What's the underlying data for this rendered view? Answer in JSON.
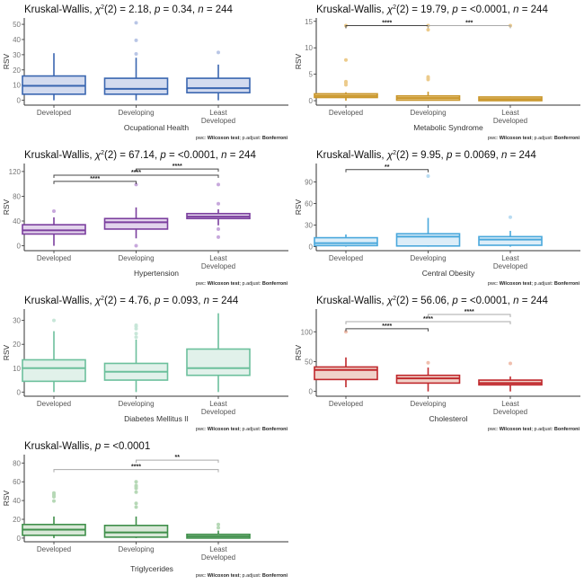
{
  "chart_data": [
    {
      "type": "box",
      "title": {
        "prefix": "Kruskal-Wallis, ",
        "chi": "χ",
        "sup": "2",
        "rest": "(2) = 2.18, ",
        "p_label": "p",
        "p_val": " = 0.34, ",
        "n_label": "n",
        "n_val": " = 244"
      },
      "xlabel": "Ocupational Health",
      "ylabel": "RSV",
      "categories": [
        "Developed",
        "Developing",
        "Least\nDeveloped"
      ],
      "ylim": [
        -2,
        53
      ],
      "yticks": [
        0,
        10,
        20,
        30,
        40,
        50
      ],
      "color": {
        "stroke": "#3a66b0",
        "fill": "#d3dbef",
        "outlier": "#b9c6e6"
      },
      "boxes": [
        {
          "min": 0,
          "q1": 4,
          "median": 9.5,
          "q3": 16,
          "max": 31,
          "outliers": []
        },
        {
          "min": 0,
          "q1": 4,
          "median": 7.5,
          "q3": 14.5,
          "max": 28,
          "outliers": [
            30.5,
            39.5,
            51
          ]
        },
        {
          "min": 0,
          "q1": 5,
          "median": 8,
          "q3": 14.5,
          "max": 23.5,
          "outliers": [
            31.5
          ]
        }
      ],
      "comparisons": [],
      "footer": {
        "pwc": "pwc: ",
        "test": "Wilcoxon test",
        "sep": "; p.adjust: ",
        "adj": "Bonferroni"
      }
    },
    {
      "type": "box",
      "title": {
        "prefix": "Kruskal-Wallis, ",
        "chi": "χ",
        "sup": "2",
        "rest": "(2) = 19.79, ",
        "p_label": "p",
        "p_val": " = <0.0001, ",
        "n_label": "n",
        "n_val": " = 244"
      },
      "xlabel": "Metabolic Syndrome",
      "ylabel": "RSV",
      "categories": [
        "Developed",
        "Developing",
        "Least\nDeveloped"
      ],
      "ylim": [
        -0.5,
        15.3
      ],
      "yticks": [
        0,
        5,
        10,
        15
      ],
      "color": {
        "stroke": "#c9962a",
        "fill": "#efd9a8",
        "outlier": "#eccb8c"
      },
      "boxes": [
        {
          "min": 0,
          "q1": 0.6,
          "median": 0.9,
          "q3": 1.3,
          "max": 1.6,
          "outliers": [
            3.0,
            3.4,
            3.6,
            7.7,
            14.2
          ]
        },
        {
          "min": 0,
          "q1": 0.1,
          "median": 0.5,
          "q3": 0.9,
          "max": 1.7,
          "outliers": [
            4.0,
            4.3,
            4.5,
            13.4,
            14.2
          ]
        },
        {
          "min": 0,
          "q1": 0.0,
          "median": 0.3,
          "q3": 0.7,
          "max": 0.8,
          "outliers": [
            14.2
          ]
        }
      ],
      "comparisons": [
        {
          "from": 0,
          "to": 1,
          "label": "****",
          "y": 14.2,
          "style": "dark"
        },
        {
          "from": 1,
          "to": 2,
          "label": "***",
          "y": 14.2,
          "style": "light"
        }
      ],
      "footer": {
        "pwc": "pwc: ",
        "test": "Wilcoxon test",
        "sep": "; p.adjust: ",
        "adj": "Bonferroni"
      }
    },
    {
      "type": "box",
      "title": {
        "prefix": "Kruskal-Wallis, ",
        "chi": "χ",
        "sup": "2",
        "rest": "(2) = 67.14, ",
        "p_label": "p",
        "p_val": " = <0.0001, ",
        "n_label": "n",
        "n_val": " = 244"
      },
      "xlabel": "Hypertension",
      "ylabel": "RSV",
      "categories": [
        "Developed",
        "Developing",
        "Least\nDeveloped"
      ],
      "ylim": [
        -5,
        130
      ],
      "yticks": [
        0,
        40,
        80,
        120
      ],
      "color": {
        "stroke": "#7b3f9e",
        "fill": "#e2d4ec",
        "outlier": "#c7a8dc"
      },
      "boxes": [
        {
          "min": 0,
          "q1": 19,
          "median": 25,
          "q3": 34,
          "max": 46,
          "outliers": [
            56
          ]
        },
        {
          "min": 12,
          "q1": 27,
          "median": 38,
          "q3": 44,
          "max": 62,
          "outliers": [
            0,
            99
          ]
        },
        {
          "min": 33,
          "q1": 44,
          "median": 47,
          "q3": 52,
          "max": 59,
          "outliers": [
            14,
            27,
            68,
            99
          ]
        }
      ],
      "comparisons": [
        {
          "from": 0,
          "to": 1,
          "label": "****",
          "y": 104,
          "style": "dark"
        },
        {
          "from": 0,
          "to": 2,
          "label": "****",
          "y": 114,
          "style": "dark"
        },
        {
          "from": 1,
          "to": 2,
          "label": "****",
          "y": 124,
          "style": "dark"
        }
      ],
      "footer": {
        "pwc": "pwc: ",
        "test": "Wilcoxon test",
        "sep": "; p.adjust: ",
        "adj": "Bonferroni"
      }
    },
    {
      "type": "box",
      "title": {
        "prefix": "Kruskal-Wallis, ",
        "chi": "χ",
        "sup": "2",
        "rest": "(2) = 9.95, ",
        "p_label": "p",
        "p_val": " = 0.0069, ",
        "n_label": "n",
        "n_val": " = 244"
      },
      "xlabel": "Central Obesity",
      "ylabel": "RSV",
      "categories": [
        "Developed",
        "Developing",
        "Least\nDeveloped"
      ],
      "ylim": [
        -3,
        113
      ],
      "yticks": [
        0,
        30,
        60,
        90
      ],
      "color": {
        "stroke": "#4aa8dc",
        "fill": "#dcedf8",
        "outlier": "#b9dcf2"
      },
      "boxes": [
        {
          "min": 0,
          "q1": 1.5,
          "median": 5,
          "q3": 12.5,
          "max": 17,
          "outliers": []
        },
        {
          "min": 0,
          "q1": 1,
          "median": 14,
          "q3": 18,
          "max": 40,
          "outliers": [
            98
          ]
        },
        {
          "min": 0,
          "q1": 2,
          "median": 10,
          "q3": 14,
          "max": 22,
          "outliers": [
            41
          ]
        }
      ],
      "comparisons": [
        {
          "from": 0,
          "to": 1,
          "label": "**",
          "y": 107,
          "style": "dark"
        }
      ],
      "footer": {
        "pwc": "pwc: ",
        "test": "Wilcoxon test",
        "sep": "; p.adjust: ",
        "adj": "Bonferroni"
      }
    },
    {
      "type": "box",
      "title": {
        "prefix": "Kruskal-Wallis, ",
        "chi": "χ",
        "sup": "2",
        "rest": "(2) = 4.76, ",
        "p_label": "p",
        "p_val": " = 0.093, ",
        "n_label": "n",
        "n_val": " = 244"
      },
      "xlabel": "Diabetes Mellitus II",
      "ylabel": "RSV",
      "categories": [
        "Developed",
        "Developing",
        "Least\nDeveloped"
      ],
      "ylim": [
        -1,
        34
      ],
      "yticks": [
        0,
        10,
        20,
        30
      ],
      "color": {
        "stroke": "#6cc09c",
        "fill": "#e1f1ea",
        "outlier": "#c7e6d8"
      },
      "boxes": [
        {
          "min": 0,
          "q1": 4.5,
          "median": 10,
          "q3": 13.5,
          "max": 25.5,
          "outliers": [
            30
          ]
        },
        {
          "min": 0,
          "q1": 5,
          "median": 8.5,
          "q3": 12,
          "max": 22,
          "outliers": [
            23,
            24.5,
            26.5,
            27.5,
            28
          ]
        },
        {
          "min": 0,
          "q1": 7,
          "median": 10,
          "q3": 18,
          "max": 33,
          "outliers": []
        }
      ],
      "comparisons": [],
      "footer": {
        "pwc": "pwc: ",
        "test": "Wilcoxon test",
        "sep": "; p.adjust: ",
        "adj": "Bonferroni"
      }
    },
    {
      "type": "box",
      "title": {
        "prefix": "Kruskal-Wallis, ",
        "chi": "χ",
        "sup": "2",
        "rest": "(2) = 56.06, ",
        "p_label": "p",
        "p_val": " = <0.0001, ",
        "n_label": "n",
        "n_val": " = 244"
      },
      "xlabel": "Cholesterol",
      "ylabel": "RSV",
      "categories": [
        "Developed",
        "Developing",
        "Least\nDeveloped"
      ],
      "ylim": [
        -5,
        135
      ],
      "yticks": [
        0,
        50,
        100
      ],
      "color": {
        "stroke": "#c0282c",
        "fill": "#f0d2c9",
        "outlier": "#f0bfae"
      },
      "boxes": [
        {
          "min": 7,
          "q1": 20,
          "median": 36,
          "q3": 41,
          "max": 57,
          "outliers": [
            100
          ]
        },
        {
          "min": 0,
          "q1": 14,
          "median": 22,
          "q3": 27,
          "max": 40,
          "outliers": [
            48
          ]
        },
        {
          "min": 0,
          "q1": 11,
          "median": 14,
          "q3": 19,
          "max": 25,
          "outliers": [
            47
          ]
        }
      ],
      "comparisons": [
        {
          "from": 0,
          "to": 1,
          "label": "****",
          "y": 105,
          "style": "dark"
        },
        {
          "from": 0,
          "to": 2,
          "label": "****",
          "y": 117,
          "style": "light"
        },
        {
          "from": 1,
          "to": 2,
          "label": "****",
          "y": 129,
          "style": "light"
        }
      ],
      "footer": {
        "pwc": "pwc: ",
        "test": "Wilcoxon test",
        "sep": "; p.adjust: ",
        "adj": "Bonferroni"
      }
    },
    {
      "type": "box",
      "title": {
        "prefix": "Kruskal-Wallis, ",
        "chi": "",
        "sup": "",
        "rest": "",
        "p_label": "p",
        "p_val": " = <0.0001",
        "n_label": "",
        "n_val": ""
      },
      "xlabel": "Triglycerides",
      "ylabel": "RSV",
      "categories": [
        "Developed",
        "Developing",
        "Least\nDeveloped"
      ],
      "ylim": [
        -2,
        87
      ],
      "yticks": [
        0,
        20,
        40,
        60,
        80
      ],
      "color": {
        "stroke": "#3f8f4a",
        "fill": "#d9e8d8",
        "outlier": "#b6d8b6"
      },
      "boxes": [
        {
          "min": 0,
          "q1": 3,
          "median": 9,
          "q3": 14.5,
          "max": 23,
          "outliers": [
            39.5,
            44,
            46,
            48
          ]
        },
        {
          "min": 0,
          "q1": 1,
          "median": 6,
          "q3": 13.5,
          "max": 23,
          "outliers": [
            33,
            37,
            49,
            53,
            55,
            56,
            60
          ]
        },
        {
          "min": 0,
          "q1": 0,
          "median": 2,
          "q3": 4,
          "max": 8,
          "outliers": [
            11,
            14.5
          ]
        }
      ],
      "comparisons": [
        {
          "from": 0,
          "to": 2,
          "label": "****",
          "y": 73,
          "style": "light"
        },
        {
          "from": 1,
          "to": 2,
          "label": "**",
          "y": 83,
          "style": "light"
        }
      ],
      "footer": {
        "pwc": "pwc: ",
        "test": "Wilcoxon test",
        "sep": "; p.adjust: ",
        "adj": "Bonferroni"
      }
    }
  ]
}
